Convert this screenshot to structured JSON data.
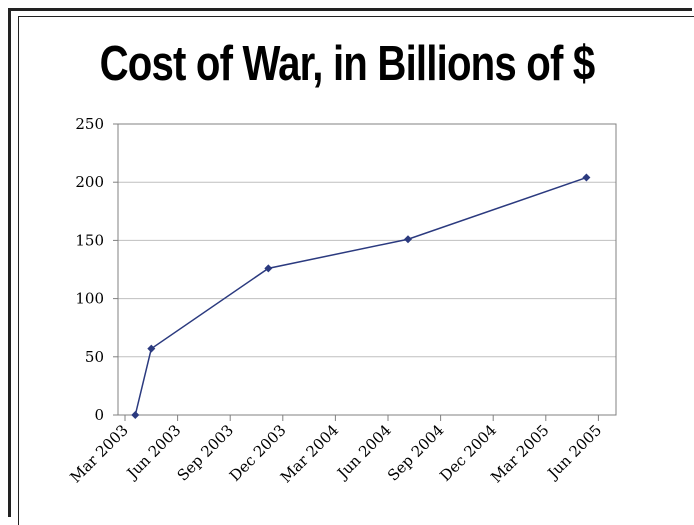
{
  "chart_data": {
    "type": "line",
    "title": "Cost of War, in Billions of $",
    "xlabel": "",
    "ylabel": "",
    "x_tick_labels": [
      "Mar 2003",
      "Jun 2003",
      "Sep 2003",
      "Dec 2003",
      "Mar 2004",
      "Jun 2004",
      "Sep 2004",
      "Dec 2004",
      "Mar 2005",
      "Jun 2005"
    ],
    "y_tick_labels": [
      "0",
      "50",
      "100",
      "150",
      "200",
      "250"
    ],
    "ylim": [
      0,
      250
    ],
    "series": [
      {
        "x": [
          "2003-03-19",
          "2003-04-16",
          "2003-11-06",
          "2004-07-06",
          "2005-05-11"
        ],
        "values": [
          0,
          57,
          126,
          151,
          204
        ]
      }
    ],
    "grid": true,
    "legend": "none",
    "colors": {
      "series": "#2b3a7f",
      "gridline": "#bfbfbf"
    }
  }
}
